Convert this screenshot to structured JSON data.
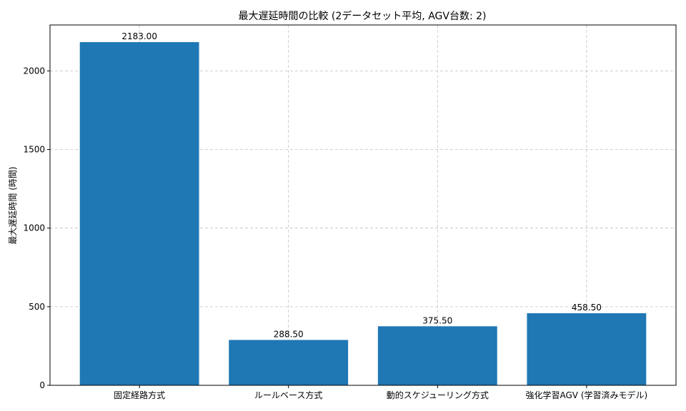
{
  "chart_data": {
    "type": "bar",
    "title": "最大遅延時間の比較 (2データセット平均, AGV台数: 2)",
    "xlabel": "",
    "ylabel": "最大遅延時間 (時間)",
    "categories": [
      "固定経路方式",
      "ルールベース方式",
      "動的スケジューリング方式",
      "強化学習AGV (学習済みモデル)"
    ],
    "values": [
      2183.0,
      288.5,
      375.5,
      458.5
    ],
    "data_labels": [
      "2183.00",
      "288.50",
      "375.50",
      "458.50"
    ],
    "ylim": [
      0,
      2292.15
    ],
    "yticks": [
      0,
      500,
      1000,
      1500,
      2000
    ],
    "grid": true,
    "bar_color": "#1f77b4",
    "grid_color": "#b0b0b0"
  }
}
